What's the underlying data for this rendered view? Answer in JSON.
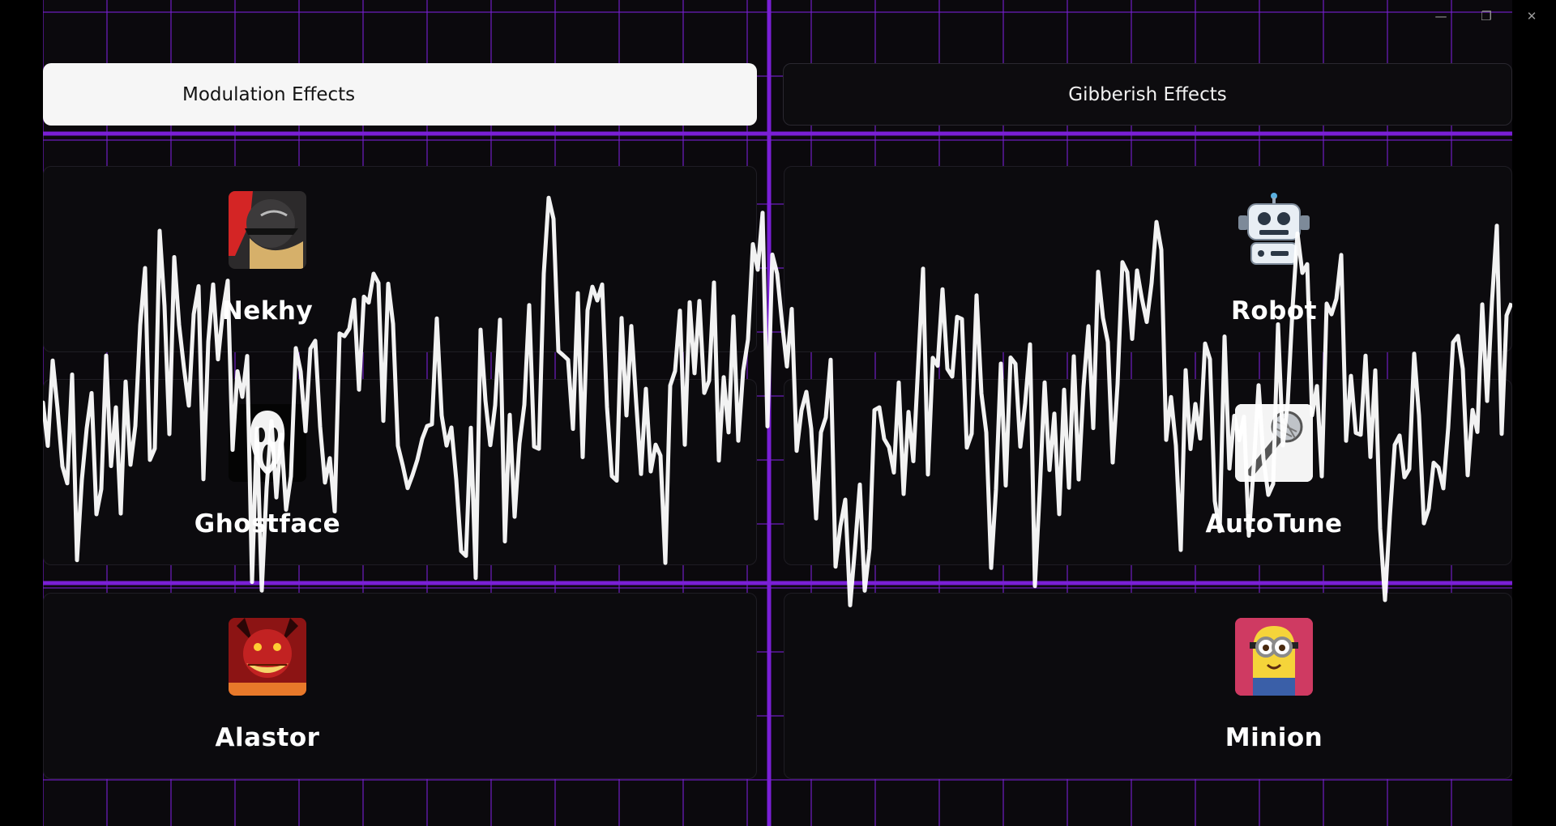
{
  "window_controls": {
    "minimize": "—",
    "restore": "❐",
    "close": "✕"
  },
  "tabs": [
    {
      "label": "Modulation Effects",
      "active": true
    },
    {
      "label": "Gibberish Effects",
      "active": false
    }
  ],
  "modulation_voices": [
    {
      "name": "Nekhy",
      "icon": "anime-character-avatar"
    },
    {
      "name": "Ghostface",
      "icon": "ghostface-mask-icon"
    },
    {
      "name": "Alastor",
      "icon": "alastor-character-avatar"
    }
  ],
  "gibberish_voices": [
    {
      "name": "Robot",
      "icon": "robot-icon"
    },
    {
      "name": "AutoTune",
      "icon": "microphone-icon"
    },
    {
      "name": "Minion",
      "icon": "minion-character-avatar"
    }
  ],
  "colors": {
    "background": "#0b090d",
    "grid": "#7a1fd6",
    "tab_active": "#f6f6f6",
    "card": "#0c0b0e",
    "waveform": "#ffffff"
  }
}
